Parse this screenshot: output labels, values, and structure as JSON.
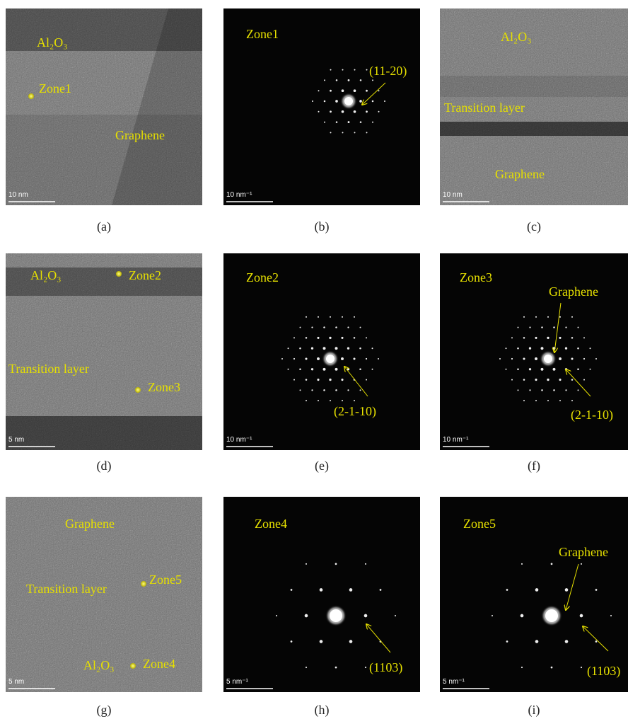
{
  "panels": [
    {
      "caption": "(a)",
      "labels": [
        "Al₂O₃",
        "Zone1",
        "Graphene"
      ],
      "scale_bar": "10 nm"
    },
    {
      "caption": "(b)",
      "labels": [
        "Zone1",
        "(11-20)"
      ],
      "scale_bar": "10 nm⁻¹"
    },
    {
      "caption": "(c)",
      "labels": [
        "Al₂O₃",
        "Transition layer",
        "Graphene"
      ],
      "scale_bar": "10 nm"
    },
    {
      "caption": "(d)",
      "labels": [
        "Al₂O₃",
        "Zone2",
        "Transition layer",
        "Zone3"
      ],
      "scale_bar": "5 nm"
    },
    {
      "caption": "(e)",
      "labels": [
        "Zone2",
        "(2-1-10)"
      ],
      "scale_bar": "10 nm⁻¹"
    },
    {
      "caption": "(f)",
      "labels": [
        "Zone3",
        "Graphene",
        "(2-1-10)"
      ],
      "scale_bar": "10 nm⁻¹"
    },
    {
      "caption": "(g)",
      "labels": [
        "Graphene",
        "Transition layer",
        "Zone5",
        "Al₂O₃",
        "Zone4"
      ],
      "scale_bar": "5 nm"
    },
    {
      "caption": "(h)",
      "labels": [
        "Zone4",
        "(1103)"
      ],
      "scale_bar": "5 nm⁻¹"
    },
    {
      "caption": "(i)",
      "labels": [
        "Zone5",
        "Graphene",
        "(1103)"
      ],
      "scale_bar": "5 nm⁻¹"
    }
  ]
}
